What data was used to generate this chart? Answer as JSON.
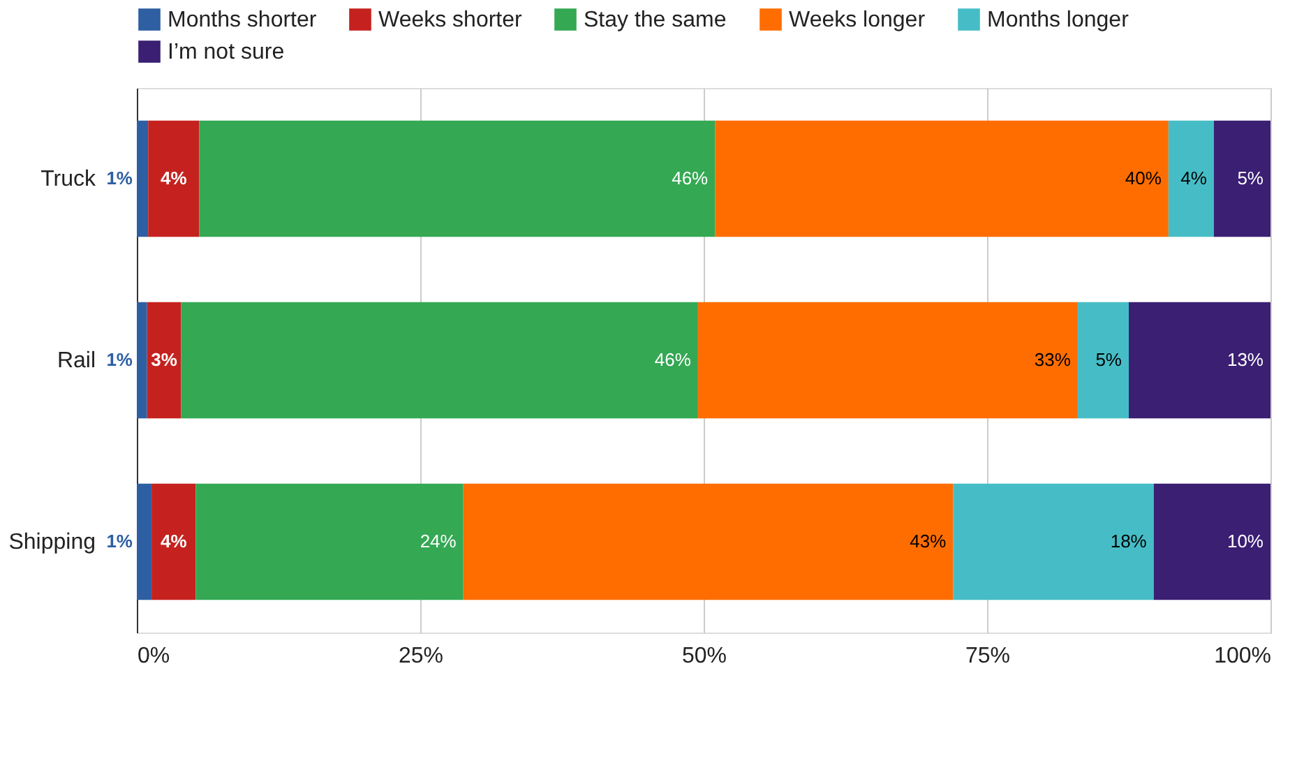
{
  "chart_data": {
    "type": "bar",
    "orientation": "horizontal",
    "stacked": true,
    "categories": [
      "Truck",
      "Rail",
      "Shipping"
    ],
    "series": [
      {
        "name": "Months shorter",
        "color": "#2e5fa3",
        "values": [
          1,
          0.9,
          1.3
        ],
        "value_labels": [
          "1%",
          "1%",
          "1%"
        ]
      },
      {
        "name": "Weeks shorter",
        "color": "#c5221f",
        "values": [
          4.5,
          3,
          3.9
        ],
        "value_labels": [
          "4%",
          "3%",
          "4%"
        ]
      },
      {
        "name": "Stay the same",
        "color": "#34a853",
        "values": [
          45.5,
          45.6,
          23.6
        ],
        "value_labels": [
          "46%",
          "46%",
          "24%"
        ]
      },
      {
        "name": "Weeks longer",
        "color": "#ff6d01",
        "values": [
          40,
          33.5,
          43.2
        ],
        "value_labels": [
          "40%",
          "33%",
          "43%"
        ]
      },
      {
        "name": "Months longer",
        "color": "#46bdc6",
        "values": [
          4,
          4.5,
          17.7
        ],
        "value_labels": [
          "4%",
          "5%",
          "18%"
        ]
      },
      {
        "name": "I’m not sure",
        "color": "#3b1f73",
        "values": [
          5,
          12.5,
          10.3
        ],
        "value_labels": [
          "5%",
          "13%",
          "10%"
        ]
      }
    ],
    "xlim": [
      0,
      100
    ],
    "xticks": [
      {
        "value": 0,
        "label": "0%"
      },
      {
        "value": 25,
        "label": "25%"
      },
      {
        "value": 50,
        "label": "50%"
      },
      {
        "value": 75,
        "label": "75%"
      },
      {
        "value": 100,
        "label": "100%"
      }
    ],
    "grid": "x",
    "legend": "top"
  }
}
